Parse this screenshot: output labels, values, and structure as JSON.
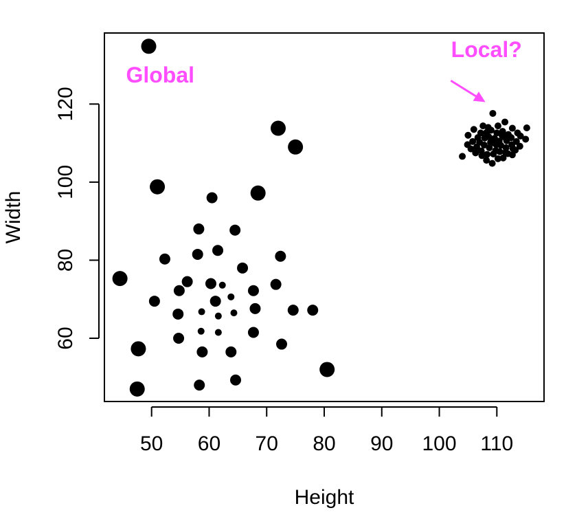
{
  "chart_data": {
    "type": "scatter",
    "xlabel": "Height",
    "ylabel": "Width",
    "xlim": [
      41.8,
      118.2
    ],
    "ylim": [
      43.8,
      138.2
    ],
    "xticks": [
      50,
      60,
      70,
      80,
      90,
      100,
      110
    ],
    "yticks": [
      60,
      80,
      100,
      120
    ],
    "grid": false,
    "point_color": "#000000",
    "annotation_color": "#ff4dff",
    "annotations": [
      {
        "text": "Global",
        "x": 51.5,
        "y": 125.5
      },
      {
        "text": "Local?",
        "x": 108.2,
        "y": 132.0
      }
    ],
    "arrow": {
      "from": [
        102.0,
        126.0
      ],
      "to": [
        108.0,
        120.5
      ]
    },
    "points_large": [
      [
        49.5,
        134.8
      ],
      [
        51.0,
        98.8
      ],
      [
        44.5,
        75.3
      ],
      [
        47.7,
        57.3
      ],
      [
        47.5,
        47.0
      ],
      [
        72.0,
        113.8
      ],
      [
        75.0,
        109.0
      ],
      [
        68.5,
        97.2
      ],
      [
        80.5,
        52.0
      ]
    ],
    "points_medium": [
      [
        60.5,
        96.0
      ],
      [
        58.2,
        88.0
      ],
      [
        64.5,
        87.7
      ],
      [
        61.5,
        82.5
      ],
      [
        58.0,
        81.5
      ],
      [
        52.3,
        80.3
      ],
      [
        72.4,
        81.0
      ],
      [
        65.8,
        78.0
      ],
      [
        56.2,
        74.5
      ],
      [
        54.8,
        72.2
      ],
      [
        60.3,
        74.0
      ],
      [
        71.6,
        73.8
      ],
      [
        50.5,
        69.5
      ],
      [
        67.7,
        72.2
      ],
      [
        61.1,
        69.5
      ],
      [
        68.0,
        67.6
      ],
      [
        74.6,
        67.2
      ],
      [
        78.0,
        67.2
      ],
      [
        54.6,
        66.2
      ],
      [
        67.7,
        61.5
      ],
      [
        54.7,
        60.0
      ],
      [
        72.6,
        58.5
      ],
      [
        58.8,
        56.5
      ],
      [
        63.8,
        56.5
      ],
      [
        64.6,
        49.3
      ],
      [
        58.3,
        48.0
      ]
    ],
    "points_small": [
      [
        62.3,
        73.6
      ],
      [
        63.8,
        70.6
      ],
      [
        58.7,
        66.8
      ],
      [
        61.6,
        65.7
      ],
      [
        64.3,
        66.5
      ],
      [
        58.6,
        61.8
      ],
      [
        61.6,
        61.5
      ],
      [
        109.3,
        117.6
      ],
      [
        104.0,
        106.6
      ],
      [
        115.2,
        113.9
      ],
      [
        115.0,
        111.0
      ],
      [
        105.0,
        112.0
      ],
      [
        106.0,
        113.5
      ],
      [
        107.6,
        114.4
      ],
      [
        108.5,
        114.0
      ],
      [
        110.2,
        114.4
      ],
      [
        111.4,
        115.4
      ],
      [
        112.7,
        113.8
      ],
      [
        113.6,
        112.6
      ],
      [
        114.1,
        111.8
      ],
      [
        113.4,
        110.4
      ],
      [
        114.0,
        109.2
      ],
      [
        112.8,
        108.6
      ],
      [
        111.9,
        107.3
      ],
      [
        111.1,
        106.2
      ],
      [
        110.2,
        106.0
      ],
      [
        109.2,
        104.8
      ],
      [
        108.2,
        105.6
      ],
      [
        107.4,
        106.8
      ],
      [
        106.3,
        107.5
      ],
      [
        105.5,
        108.5
      ],
      [
        104.9,
        109.6
      ],
      [
        105.8,
        110.4
      ],
      [
        106.7,
        111.4
      ],
      [
        107.2,
        112.6
      ],
      [
        108.2,
        112.7
      ],
      [
        109.0,
        113.3
      ],
      [
        110.0,
        112.6
      ],
      [
        111.0,
        113.0
      ],
      [
        112.0,
        112.2
      ],
      [
        112.5,
        111.4
      ],
      [
        111.7,
        110.6
      ],
      [
        112.6,
        109.6
      ],
      [
        111.6,
        108.8
      ],
      [
        110.7,
        109.4
      ],
      [
        109.8,
        108.1
      ],
      [
        108.7,
        108.8
      ],
      [
        107.8,
        109.5
      ],
      [
        107.0,
        110.2
      ],
      [
        106.5,
        109.0
      ],
      [
        107.3,
        108.0
      ],
      [
        108.3,
        107.1
      ],
      [
        109.4,
        107.2
      ],
      [
        110.5,
        107.8
      ],
      [
        111.5,
        107.6
      ],
      [
        112.7,
        107.0
      ],
      [
        113.2,
        108.2
      ],
      [
        108.9,
        110.2
      ],
      [
        109.6,
        111.2
      ],
      [
        110.4,
        110.5
      ],
      [
        111.2,
        111.6
      ],
      [
        109.9,
        109.6
      ],
      [
        108.6,
        111.6
      ],
      [
        107.9,
        111.3
      ],
      [
        110.9,
        112.0
      ],
      [
        109.5,
        110.0
      ]
    ]
  }
}
